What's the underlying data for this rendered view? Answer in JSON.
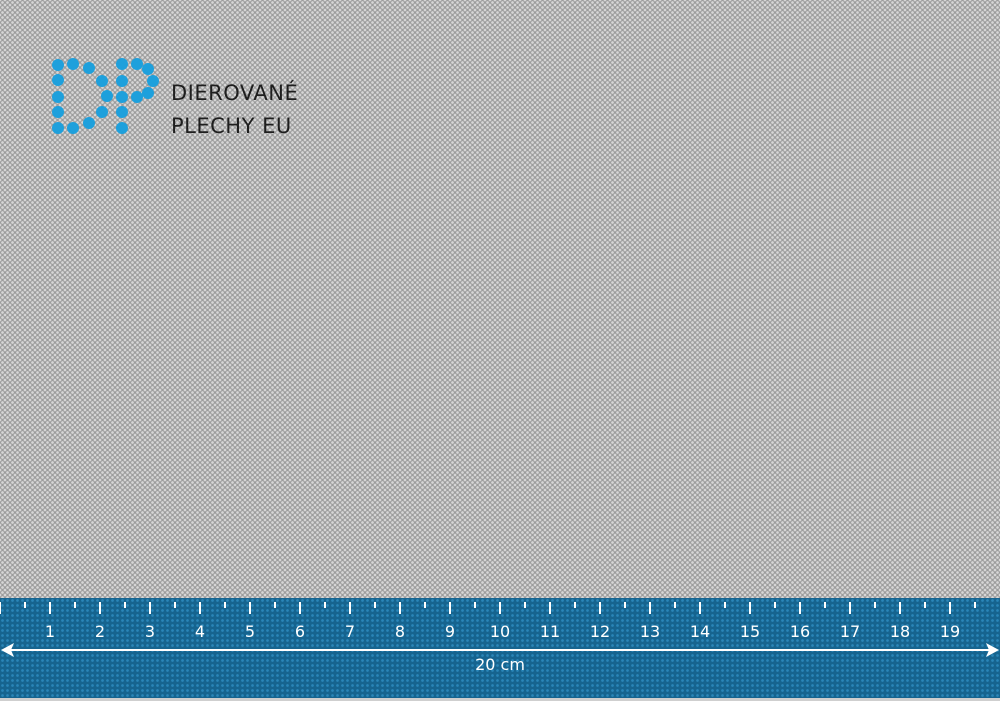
{
  "logo": {
    "monogram": "DP",
    "line1": "DIEROVANÉ",
    "line2": "PLECHY EU",
    "color": "#1ea0dc"
  },
  "ruler": {
    "labels": [
      "1",
      "2",
      "3",
      "4",
      "5",
      "6",
      "7",
      "8",
      "9",
      "10",
      "11",
      "12",
      "13",
      "14",
      "15",
      "16",
      "17",
      "18",
      "19"
    ],
    "length_label": "20 cm",
    "color": "#16648f"
  },
  "sheet": {
    "color": "#9c9c9c",
    "hole_color": "#d6d6d6"
  }
}
